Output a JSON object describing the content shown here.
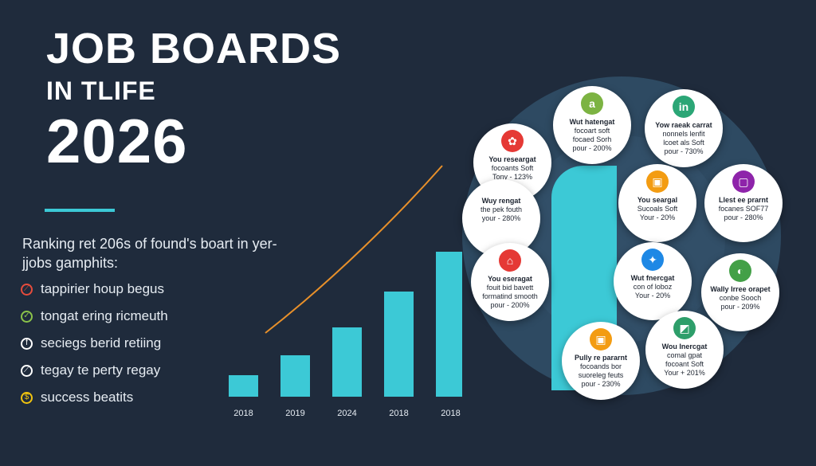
{
  "header": {
    "title_line1": "JOB BOARDS",
    "title_line2": "IN TLIFE",
    "title_line3": "2026",
    "subtitle": "Ranking ret 206s of found's boart in yer-jjobs gamphits:"
  },
  "features": [
    {
      "label": "tappirier houp begus",
      "icon": "compass-icon",
      "glyph": "⟋",
      "color": "#e74c3c"
    },
    {
      "label": "tongat ering ricmeuth",
      "icon": "check-icon",
      "glyph": "✓",
      "color": "#8bc34a"
    },
    {
      "label": "seciegs berid retiing",
      "icon": "f-letter-icon",
      "glyph": "f",
      "color": "#ffffff"
    },
    {
      "label": "tegay te perty regay",
      "icon": "tag-icon",
      "glyph": "⟋",
      "color": "#ffffff"
    },
    {
      "label": "success beatits",
      "icon": "dollar-icon",
      "glyph": "$",
      "color": "#f1c40f"
    }
  ],
  "chart_data": {
    "type": "bar",
    "categories": [
      "2018",
      "2019",
      "2024",
      "2018",
      "2018"
    ],
    "values": [
      27,
      52,
      87,
      132,
      182
    ],
    "bar_color": "#3cc9d6",
    "trend_color": "#e8902a",
    "grid": false
  },
  "bubbles": [
    {
      "icon": "amazon-icon",
      "glyph": "a",
      "color": "#7cb342",
      "lines": [
        "Wut hatengat",
        "focoart soft",
        "focaed Sorh",
        "pour - 200%"
      ]
    },
    {
      "icon": "linkedin-icon",
      "glyph": "in",
      "color": "#2ba676",
      "lines": [
        "Yow raeak carrat",
        "nonnels lenfit",
        "lcoet als Soft",
        "pour - 730%"
      ]
    },
    {
      "icon": "red-badge-icon",
      "glyph": "✿",
      "color": "#e53935",
      "lines": [
        "You researgat",
        "focoants Soft",
        "Tony - 123%"
      ]
    },
    {
      "icon": "none",
      "glyph": "",
      "color": "",
      "lines": [
        "Wuy rengat",
        "the pek fouth",
        "your - 280%"
      ]
    },
    {
      "icon": "orange-square-icon",
      "glyph": "▣",
      "color": "#f39c12",
      "lines": [
        "You seargal",
        "Sucoals Soft",
        "Your - 20%"
      ]
    },
    {
      "icon": "purple-square-icon",
      "glyph": "▢",
      "color": "#8e24aa",
      "lines": [
        "Llest ee prarnt",
        "focanes SOF77",
        "pour - 280%"
      ]
    },
    {
      "icon": "red-shop-icon",
      "glyph": "⌂",
      "color": "#e53935",
      "lines": [
        "You eseragat",
        "fouit bid bavett",
        "formatind smooth",
        "pour - 200%"
      ]
    },
    {
      "icon": "twitter-icon",
      "glyph": "✦",
      "color": "#1e88e5",
      "lines": [
        "Wut fnercgat",
        "con of loboz",
        "Your - 20%"
      ]
    },
    {
      "icon": "green-circle-icon",
      "glyph": "◐",
      "color": "#43a047",
      "lines": [
        "Wally Irree orapet",
        "conbe Sooch",
        "pour - 209%"
      ]
    },
    {
      "icon": "orange-box-icon",
      "glyph": "▣",
      "color": "#f39c12",
      "lines": [
        "Pully re pararnt",
        "focoands bor",
        "suoreleg feuts",
        "pour - 230%"
      ]
    },
    {
      "icon": "green-chart-icon",
      "glyph": "◩",
      "color": "#2e9e6a",
      "lines": [
        "Wou Inercgat",
        "comal gpat",
        "focoant Soft",
        "Your + 201%"
      ]
    }
  ]
}
